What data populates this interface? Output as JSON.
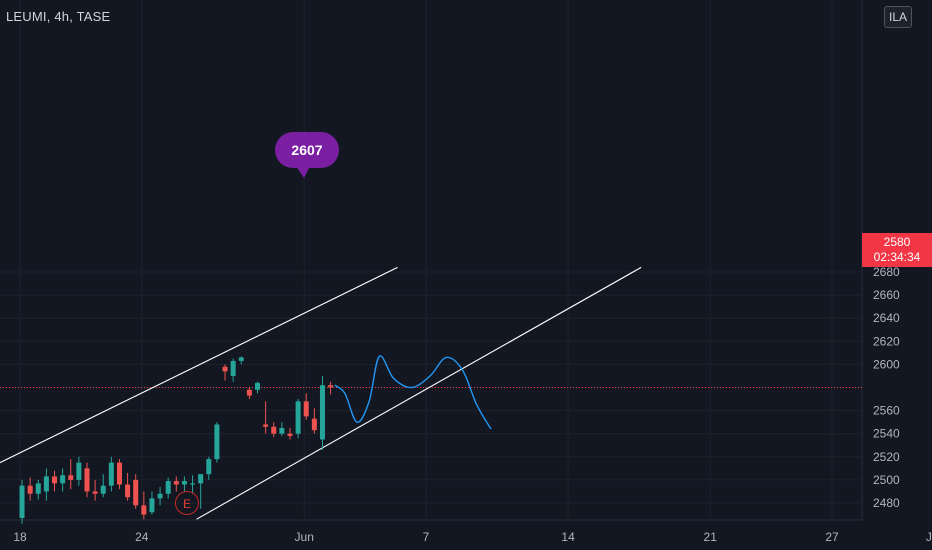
{
  "header": {
    "symbol_line": "LEUMI, 4h, TASE"
  },
  "currency_button": "ILA",
  "price_label": {
    "price": "2580",
    "countdown": "02:34:34"
  },
  "callout": {
    "label": "2607"
  },
  "event_badge": {
    "label": "E"
  },
  "colors": {
    "background": "#131722",
    "up": "#26a69a",
    "down": "#ef5350",
    "forecast": "#2196f3",
    "channel": "#ffffff",
    "callout": "#7b1fa2",
    "price_line": "#f23645"
  },
  "chart_data": {
    "type": "candlestick",
    "title": "LEUMI, 4h, TASE",
    "ylim": [
      2462,
      2682
    ],
    "y_ticks": [
      2480,
      2500,
      2520,
      2540,
      2560,
      2580,
      2600,
      2620,
      2640,
      2660,
      2680
    ],
    "y_tick_labels": [
      "2480",
      "2500",
      "2520",
      "2540",
      "2560",
      "",
      "2600",
      "2620",
      "2640",
      "2660",
      "2680"
    ],
    "x_ticks": [
      {
        "label": "18",
        "day": 18
      },
      {
        "label": "24",
        "day": 24
      },
      {
        "label": "Jun",
        "day": 32
      },
      {
        "label": "7",
        "day": 38
      },
      {
        "label": "14",
        "day": 45
      },
      {
        "label": "21",
        "day": 52
      },
      {
        "label": "27",
        "day": 58
      },
      {
        "label": "Jul",
        "day": 63
      }
    ],
    "current_price": 2580,
    "candles": [
      {
        "t": 18.1,
        "o": 2467,
        "h": 2500,
        "l": 2462,
        "c": 2495
      },
      {
        "t": 18.5,
        "o": 2495,
        "h": 2502,
        "l": 2482,
        "c": 2488
      },
      {
        "t": 18.9,
        "o": 2488,
        "h": 2500,
        "l": 2483,
        "c": 2497
      },
      {
        "t": 19.3,
        "o": 2490,
        "h": 2510,
        "l": 2482,
        "c": 2503
      },
      {
        "t": 19.7,
        "o": 2503,
        "h": 2508,
        "l": 2490,
        "c": 2497
      },
      {
        "t": 20.1,
        "o": 2497,
        "h": 2510,
        "l": 2490,
        "c": 2504
      },
      {
        "t": 20.5,
        "o": 2504,
        "h": 2518,
        "l": 2492,
        "c": 2500
      },
      {
        "t": 20.9,
        "o": 2500,
        "h": 2520,
        "l": 2495,
        "c": 2515
      },
      {
        "t": 21.3,
        "o": 2510,
        "h": 2515,
        "l": 2485,
        "c": 2490
      },
      {
        "t": 21.7,
        "o": 2490,
        "h": 2500,
        "l": 2482,
        "c": 2488
      },
      {
        "t": 22.1,
        "o": 2488,
        "h": 2505,
        "l": 2485,
        "c": 2495
      },
      {
        "t": 22.5,
        "o": 2495,
        "h": 2520,
        "l": 2490,
        "c": 2515
      },
      {
        "t": 22.9,
        "o": 2515,
        "h": 2518,
        "l": 2492,
        "c": 2496
      },
      {
        "t": 23.3,
        "o": 2496,
        "h": 2506,
        "l": 2482,
        "c": 2485
      },
      {
        "t": 23.7,
        "o": 2500,
        "h": 2505,
        "l": 2475,
        "c": 2478
      },
      {
        "t": 24.1,
        "o": 2478,
        "h": 2490,
        "l": 2466,
        "c": 2470
      },
      {
        "t": 24.5,
        "o": 2472,
        "h": 2490,
        "l": 2470,
        "c": 2484
      },
      {
        "t": 24.9,
        "o": 2484,
        "h": 2494,
        "l": 2478,
        "c": 2488
      },
      {
        "t": 25.3,
        "o": 2488,
        "h": 2502,
        "l": 2484,
        "c": 2499
      },
      {
        "t": 25.7,
        "o": 2499,
        "h": 2503,
        "l": 2490,
        "c": 2496
      },
      {
        "t": 26.1,
        "o": 2496,
        "h": 2503,
        "l": 2490,
        "c": 2499
      },
      {
        "t": 26.5,
        "o": 2496,
        "h": 2504,
        "l": 2488,
        "c": 2497
      },
      {
        "t": 26.9,
        "o": 2497,
        "h": 2504,
        "l": 2475,
        "c": 2505
      },
      {
        "t": 27.3,
        "o": 2505,
        "h": 2520,
        "l": 2500,
        "c": 2518
      },
      {
        "t": 27.7,
        "o": 2518,
        "h": 2550,
        "l": 2515,
        "c": 2548
      },
      {
        "t": 28.1,
        "o": 2598,
        "h": 2600,
        "l": 2586,
        "c": 2594
      },
      {
        "t": 28.5,
        "o": 2590,
        "h": 2605,
        "l": 2585,
        "c": 2603
      },
      {
        "t": 28.9,
        "o": 2603,
        "h": 2607,
        "l": 2600,
        "c": 2606
      },
      {
        "t": 29.3,
        "o": 2578,
        "h": 2580,
        "l": 2570,
        "c": 2573
      },
      {
        "t": 29.7,
        "o": 2578,
        "h": 2585,
        "l": 2575,
        "c": 2584
      },
      {
        "t": 30.1,
        "o": 2548,
        "h": 2568,
        "l": 2540,
        "c": 2546
      },
      {
        "t": 30.5,
        "o": 2546,
        "h": 2550,
        "l": 2537,
        "c": 2540
      },
      {
        "t": 30.9,
        "o": 2540,
        "h": 2550,
        "l": 2538,
        "c": 2545
      },
      {
        "t": 31.3,
        "o": 2540,
        "h": 2545,
        "l": 2535,
        "c": 2538
      },
      {
        "t": 31.7,
        "o": 2540,
        "h": 2570,
        "l": 2536,
        "c": 2568
      },
      {
        "t": 32.1,
        "o": 2568,
        "h": 2575,
        "l": 2552,
        "c": 2555
      },
      {
        "t": 32.5,
        "o": 2553,
        "h": 2562,
        "l": 2540,
        "c": 2543
      },
      {
        "t": 32.9,
        "o": 2535,
        "h": 2590,
        "l": 2526,
        "c": 2582
      },
      {
        "t": 33.3,
        "o": 2582,
        "h": 2585,
        "l": 2574,
        "c": 2580
      }
    ],
    "forecast_path": [
      {
        "t": 33.5,
        "p": 2582
      },
      {
        "t": 34.0,
        "p": 2575
      },
      {
        "t": 34.6,
        "p": 2550
      },
      {
        "t": 35.2,
        "p": 2568
      },
      {
        "t": 35.7,
        "p": 2607
      },
      {
        "t": 36.4,
        "p": 2588
      },
      {
        "t": 37.3,
        "p": 2580
      },
      {
        "t": 38.2,
        "p": 2590
      },
      {
        "t": 39.0,
        "p": 2606
      },
      {
        "t": 39.8,
        "p": 2595
      },
      {
        "t": 40.5,
        "p": 2565
      },
      {
        "t": 41.2,
        "p": 2544
      }
    ],
    "channel_lines": [
      {
        "from": {
          "t": 14.7,
          "p": 2495
        },
        "to": {
          "t": 36.6,
          "p": 2684
        }
      },
      {
        "from": {
          "t": 26.7,
          "p": 2466
        },
        "to": {
          "t": 48.6,
          "p": 2684
        }
      }
    ]
  }
}
